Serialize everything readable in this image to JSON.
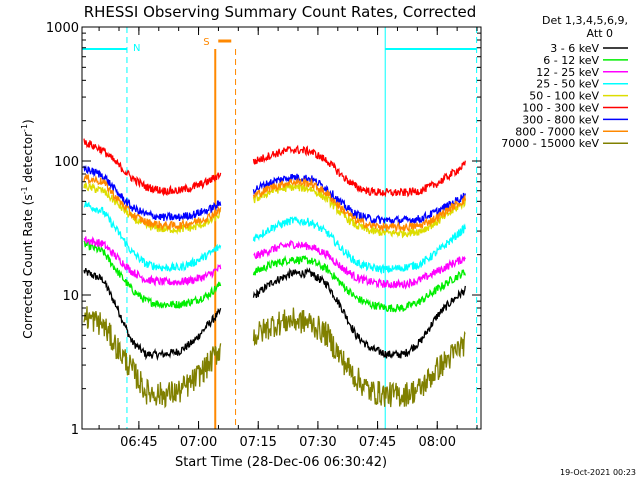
{
  "chart_data": {
    "type": "line",
    "title": "RHESSI Observing Summary Count Rates, Corrected",
    "xlabel": "Start Time (28-Dec-06 06:30:42)",
    "ylabel_parts": [
      "Corrected Count Rate (s",
      "-1",
      " detector",
      "-1",
      ")"
    ],
    "footer": "19-Oct-2021 00:23",
    "yscale": "log",
    "ylim": [
      1,
      1000
    ],
    "y_ticks": [
      {
        "v": 1,
        "label": "1"
      },
      {
        "v": 10,
        "label": "10"
      },
      {
        "v": 100,
        "label": "100"
      },
      {
        "v": 1000,
        "label": "1000"
      }
    ],
    "xlim_min": [
      6.5117,
      8.1833
    ],
    "x_ticks": [
      {
        "t": 6.75,
        "label": "06:45"
      },
      {
        "t": 7.0,
        "label": "07:00"
      },
      {
        "t": 7.25,
        "label": "07:15"
      },
      {
        "t": 7.5,
        "label": "07:30"
      },
      {
        "t": 7.75,
        "label": "07:45"
      },
      {
        "t": 8.0,
        "label": "08:00"
      }
    ],
    "legend_header": [
      "Det 1,3,4,5,6,9,",
      "Att 0"
    ],
    "legend_position": "right",
    "gaps_hours": [
      [
        7.095,
        7.23
      ]
    ],
    "series": [
      {
        "name": "3 - 6 keV",
        "color": "#000000",
        "points": [
          [
            6.52,
            15
          ],
          [
            6.6,
            13
          ],
          [
            6.66,
            8
          ],
          [
            6.72,
            4.5
          ],
          [
            6.78,
            3.6
          ],
          [
            6.85,
            3.6
          ],
          [
            6.92,
            3.8
          ],
          [
            6.98,
            4.5
          ],
          [
            7.04,
            6
          ],
          [
            7.09,
            7.5
          ],
          [
            7.24,
            10
          ],
          [
            7.31,
            12.5
          ],
          [
            7.39,
            14.5
          ],
          [
            7.47,
            14.5
          ],
          [
            7.54,
            12
          ],
          [
            7.6,
            8
          ],
          [
            7.66,
            5
          ],
          [
            7.72,
            4
          ],
          [
            7.79,
            3.6
          ],
          [
            7.86,
            3.6
          ],
          [
            7.93,
            4.5
          ],
          [
            8.0,
            7
          ],
          [
            8.06,
            9
          ],
          [
            8.12,
            11
          ]
        ]
      },
      {
        "name": "6 - 12 keV",
        "color": "#00ee00",
        "points": [
          [
            6.52,
            24
          ],
          [
            6.6,
            21
          ],
          [
            6.66,
            15
          ],
          [
            6.72,
            11
          ],
          [
            6.78,
            9
          ],
          [
            6.85,
            8.5
          ],
          [
            6.92,
            8.5
          ],
          [
            6.98,
            9
          ],
          [
            7.04,
            10
          ],
          [
            7.09,
            12
          ],
          [
            7.24,
            15
          ],
          [
            7.31,
            17
          ],
          [
            7.39,
            18.5
          ],
          [
            7.47,
            18
          ],
          [
            7.54,
            15.5
          ],
          [
            7.6,
            12
          ],
          [
            7.66,
            9.5
          ],
          [
            7.72,
            8.5
          ],
          [
            7.79,
            8
          ],
          [
            7.86,
            8
          ],
          [
            7.93,
            9
          ],
          [
            8.0,
            11
          ],
          [
            8.06,
            13
          ],
          [
            8.12,
            15
          ]
        ]
      },
      {
        "name": "12 - 25 keV",
        "color": "#ff00ff",
        "points": [
          [
            6.52,
            26
          ],
          [
            6.6,
            24
          ],
          [
            6.66,
            19
          ],
          [
            6.72,
            15
          ],
          [
            6.78,
            13
          ],
          [
            6.85,
            12.5
          ],
          [
            6.92,
            12.5
          ],
          [
            6.98,
            13
          ],
          [
            7.04,
            14
          ],
          [
            7.09,
            16
          ],
          [
            7.24,
            19.5
          ],
          [
            7.31,
            22
          ],
          [
            7.39,
            24
          ],
          [
            7.47,
            23
          ],
          [
            7.54,
            20
          ],
          [
            7.6,
            16
          ],
          [
            7.66,
            13.5
          ],
          [
            7.72,
            12.5
          ],
          [
            7.79,
            12
          ],
          [
            7.86,
            12
          ],
          [
            7.93,
            13
          ],
          [
            8.0,
            15
          ],
          [
            8.06,
            17
          ],
          [
            8.12,
            19
          ]
        ]
      },
      {
        "name": "25 - 50 keV",
        "color": "#00ffff",
        "points": [
          [
            6.52,
            48
          ],
          [
            6.6,
            42
          ],
          [
            6.66,
            30
          ],
          [
            6.72,
            21
          ],
          [
            6.78,
            17
          ],
          [
            6.85,
            16
          ],
          [
            6.92,
            16
          ],
          [
            6.98,
            17.5
          ],
          [
            7.04,
            20
          ],
          [
            7.09,
            23
          ],
          [
            7.24,
            27
          ],
          [
            7.31,
            32
          ],
          [
            7.39,
            36
          ],
          [
            7.47,
            35
          ],
          [
            7.54,
            29
          ],
          [
            7.6,
            22
          ],
          [
            7.66,
            17.5
          ],
          [
            7.72,
            16
          ],
          [
            7.79,
            15.5
          ],
          [
            7.86,
            16
          ],
          [
            7.93,
            17
          ],
          [
            8.0,
            21
          ],
          [
            8.06,
            26
          ],
          [
            8.12,
            32
          ]
        ]
      },
      {
        "name": "50 - 100 keV",
        "color": "#dddd00",
        "points": [
          [
            6.52,
            65
          ],
          [
            6.6,
            60
          ],
          [
            6.66,
            48
          ],
          [
            6.72,
            38
          ],
          [
            6.78,
            33
          ],
          [
            6.85,
            31
          ],
          [
            6.92,
            31
          ],
          [
            6.98,
            32
          ],
          [
            7.04,
            35
          ],
          [
            7.09,
            40
          ],
          [
            7.24,
            52
          ],
          [
            7.31,
            60
          ],
          [
            7.39,
            64
          ],
          [
            7.47,
            62
          ],
          [
            7.54,
            52
          ],
          [
            7.6,
            40
          ],
          [
            7.66,
            33
          ],
          [
            7.72,
            30
          ],
          [
            7.79,
            29
          ],
          [
            7.86,
            29
          ],
          [
            7.93,
            30
          ],
          [
            8.0,
            35
          ],
          [
            8.06,
            42
          ],
          [
            8.12,
            50
          ]
        ]
      },
      {
        "name": "100 - 300 keV",
        "color": "#ff0000",
        "points": [
          [
            6.52,
            140
          ],
          [
            6.6,
            120
          ],
          [
            6.66,
            95
          ],
          [
            6.72,
            75
          ],
          [
            6.78,
            64
          ],
          [
            6.85,
            60
          ],
          [
            6.92,
            60
          ],
          [
            6.98,
            64
          ],
          [
            7.04,
            70
          ],
          [
            7.09,
            80
          ],
          [
            7.24,
            100
          ],
          [
            7.31,
            112
          ],
          [
            7.39,
            122
          ],
          [
            7.47,
            118
          ],
          [
            7.54,
            100
          ],
          [
            7.6,
            78
          ],
          [
            7.66,
            64
          ],
          [
            7.72,
            59
          ],
          [
            7.79,
            58
          ],
          [
            7.86,
            58
          ],
          [
            7.93,
            60
          ],
          [
            8.0,
            68
          ],
          [
            8.06,
            80
          ],
          [
            8.12,
            95
          ]
        ]
      },
      {
        "name": "300 - 800 keV",
        "color": "#0000ff",
        "points": [
          [
            6.52,
            88
          ],
          [
            6.6,
            78
          ],
          [
            6.66,
            58
          ],
          [
            6.72,
            45
          ],
          [
            6.78,
            40
          ],
          [
            6.85,
            38
          ],
          [
            6.92,
            38
          ],
          [
            6.98,
            40
          ],
          [
            7.04,
            43
          ],
          [
            7.09,
            48
          ],
          [
            7.24,
            62
          ],
          [
            7.31,
            70
          ],
          [
            7.39,
            76
          ],
          [
            7.47,
            74
          ],
          [
            7.54,
            62
          ],
          [
            7.6,
            48
          ],
          [
            7.66,
            40
          ],
          [
            7.72,
            37
          ],
          [
            7.79,
            36
          ],
          [
            7.86,
            36
          ],
          [
            7.93,
            37
          ],
          [
            8.0,
            42
          ],
          [
            8.06,
            48
          ],
          [
            8.12,
            56
          ]
        ]
      },
      {
        "name": "800 - 7000 keV",
        "color": "#ff8800",
        "points": [
          [
            6.52,
            75
          ],
          [
            6.6,
            70
          ],
          [
            6.66,
            52
          ],
          [
            6.72,
            40
          ],
          [
            6.78,
            35
          ],
          [
            6.85,
            33
          ],
          [
            6.92,
            33
          ],
          [
            6.98,
            35
          ],
          [
            7.04,
            38
          ],
          [
            7.09,
            43
          ],
          [
            7.24,
            56
          ],
          [
            7.31,
            64
          ],
          [
            7.39,
            70
          ],
          [
            7.47,
            68
          ],
          [
            7.54,
            57
          ],
          [
            7.6,
            44
          ],
          [
            7.66,
            36
          ],
          [
            7.72,
            33
          ],
          [
            7.79,
            32
          ],
          [
            7.86,
            32
          ],
          [
            7.93,
            33
          ],
          [
            8.0,
            38
          ],
          [
            8.06,
            45
          ],
          [
            8.12,
            52
          ]
        ]
      },
      {
        "name": "7000 - 15000 keV",
        "color": "#808000",
        "points": [
          [
            6.52,
            7
          ],
          [
            6.6,
            6
          ],
          [
            6.66,
            4
          ],
          [
            6.72,
            2.8
          ],
          [
            6.78,
            1.9
          ],
          [
            6.85,
            1.8
          ],
          [
            6.92,
            1.9
          ],
          [
            6.98,
            2.3
          ],
          [
            7.04,
            3
          ],
          [
            7.09,
            4
          ],
          [
            7.24,
            5
          ],
          [
            7.31,
            6
          ],
          [
            7.39,
            6.5
          ],
          [
            7.47,
            6.2
          ],
          [
            7.54,
            5
          ],
          [
            7.6,
            3.3
          ],
          [
            7.66,
            2.4
          ],
          [
            7.72,
            1.9
          ],
          [
            7.79,
            1.8
          ],
          [
            7.86,
            1.8
          ],
          [
            7.93,
            2
          ],
          [
            8.0,
            2.8
          ],
          [
            8.06,
            3.5
          ],
          [
            8.12,
            4.5
          ]
        ]
      }
    ],
    "annotations": {
      "night_label": "N",
      "saa_label": "S",
      "night_color": "#00ffff",
      "saa_color": "#ff8800",
      "night_intervals": [
        [
          6.5117,
          6.7
        ],
        [
          7.782,
          8.165
        ]
      ],
      "saa_interval": [
        7.07,
        7.155
      ]
    }
  }
}
